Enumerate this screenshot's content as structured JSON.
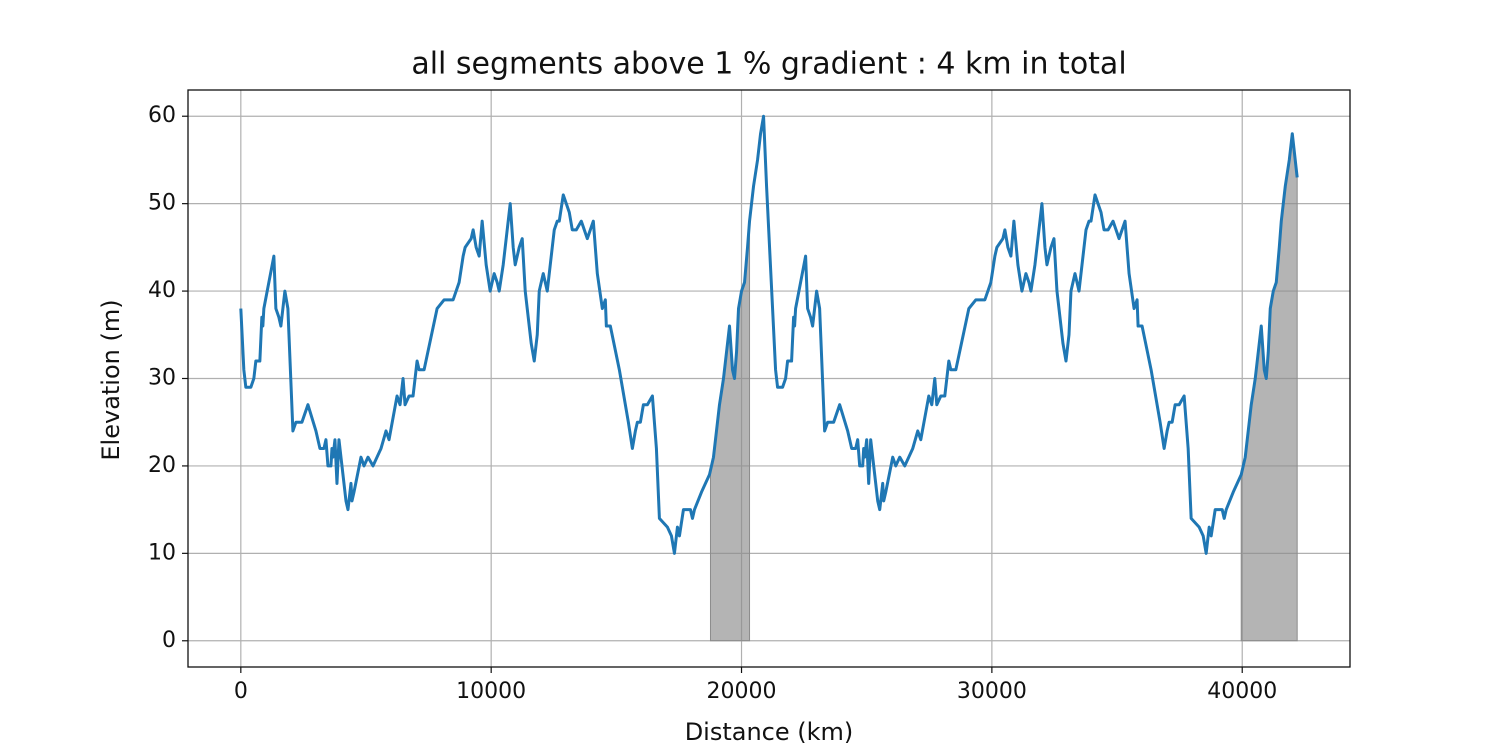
{
  "chart_data": {
    "type": "line",
    "title": "all segments above 1 % gradient : 4 km in total",
    "xlabel": "Distance (km)",
    "ylabel": "Elevation (m)",
    "color": "#1f77b4",
    "grid": true,
    "xlim": [
      -2110,
      44305
    ],
    "ylim": [
      -3,
      63
    ],
    "xticks": [
      0,
      10000,
      20000,
      30000,
      40000
    ],
    "yticks": [
      0,
      10,
      20,
      30,
      40,
      50,
      60
    ],
    "shaded_ranges": [
      [
        18760,
        20320
      ],
      [
        39960,
        42195
      ]
    ],
    "shade_color": "#8c8c8c",
    "x": [
      0,
      120,
      200,
      400,
      520,
      600,
      760,
      840,
      880,
      920,
      1320,
      1400,
      1520,
      1600,
      1760,
      1880,
      2080,
      2200,
      2440,
      2680,
      3000,
      3160,
      3320,
      3400,
      3480,
      3600,
      3640,
      3680,
      3760,
      3840,
      3920,
      4080,
      4200,
      4280,
      4400,
      4440,
      4520,
      4800,
      4920,
      5080,
      5280,
      5600,
      5800,
      5920,
      6240,
      6360,
      6480,
      6560,
      6720,
      6880,
      7040,
      7120,
      7320,
      7840,
      8120,
      8480,
      8720,
      8880,
      8960,
      9200,
      9280,
      9400,
      9520,
      9640,
      9800,
      9960,
      10120,
      10240,
      10320,
      10480,
      10760,
      10880,
      10960,
      11120,
      11240,
      11360,
      11600,
      11720,
      11840,
      11920,
      12080,
      12240,
      12520,
      12640,
      12720,
      12880,
      13000,
      13120,
      13240,
      13400,
      13600,
      13840,
      14080,
      14240,
      14440,
      14560,
      14600,
      14760,
      15120,
      15240,
      15480,
      15640,
      15760,
      15840,
      15960,
      16080,
      16240,
      16440,
      16600,
      16720,
      17040,
      17200,
      17320,
      17440,
      17520,
      17680,
      17960,
      18040,
      18120,
      18400,
      18720,
      18880,
      19120,
      19280,
      19520,
      19640,
      19720,
      19800,
      19880,
      20000,
      20120,
      20240,
      20320,
      20480,
      20640,
      20760,
      20880,
      21000,
      21120,
      21240,
      21360,
      21440,
      21640,
      21760,
      21840,
      22000,
      22080,
      22120,
      22160,
      22560,
      22640,
      22760,
      22840,
      23000,
      23120,
      23320,
      23440,
      23680,
      23920,
      24240,
      24400,
      24560,
      24640,
      24720,
      24840,
      24880,
      24920,
      25000,
      25080,
      25160,
      25320,
      25440,
      25520,
      25640,
      25680,
      25760,
      26040,
      26160,
      26320,
      26520,
      26840,
      27040,
      27160,
      27480,
      27600,
      27720,
      27800,
      27960,
      28120,
      28280,
      28360,
      28560,
      29080,
      29360,
      29720,
      29960,
      30120,
      30200,
      30440,
      30520,
      30640,
      30760,
      30880,
      31040,
      31200,
      31360,
      31480,
      31560,
      31720,
      32000,
      32120,
      32200,
      32360,
      32480,
      32600,
      32840,
      32960,
      33080,
      33160,
      33320,
      33480,
      33760,
      33880,
      33960,
      34120,
      34240,
      34360,
      34480,
      34640,
      34840,
      35080,
      35320,
      35480,
      35680,
      35800,
      35840,
      36000,
      36360,
      36480,
      36720,
      36880,
      37000,
      37080,
      37200,
      37320,
      37480,
      37680,
      37840,
      37960,
      38280,
      38440,
      38560,
      38680,
      38760,
      38920,
      39200,
      39280,
      39360,
      39640,
      39960,
      40120,
      40360,
      40520,
      40760,
      40880,
      40960,
      41040,
      41120,
      41240,
      41360,
      41480,
      41560,
      41720,
      41880,
      42000,
      42195
    ],
    "values": [
      38,
      31,
      29,
      29,
      30,
      32,
      32,
      37,
      36,
      38,
      44,
      38,
      37,
      36,
      40,
      38,
      24,
      25,
      25,
      27,
      24,
      22,
      22,
      23,
      20,
      20,
      22,
      21,
      23,
      18,
      23,
      19,
      16,
      15,
      18,
      16,
      17,
      21,
      20,
      21,
      20,
      22,
      24,
      23,
      28,
      27,
      30,
      27,
      28,
      28,
      32,
      31,
      31,
      38,
      39,
      39,
      41,
      44,
      45,
      46,
      47,
      45,
      44,
      48,
      43,
      40,
      42,
      41,
      40,
      43,
      50,
      45,
      43,
      45,
      46,
      40,
      34,
      32,
      35,
      40,
      42,
      40,
      47,
      48,
      48,
      51,
      50,
      49,
      47,
      47,
      48,
      46,
      48,
      42,
      38,
      39,
      36,
      36,
      31,
      29,
      25,
      22,
      24,
      25,
      25,
      27,
      27,
      28,
      22,
      14,
      13,
      12,
      10,
      13,
      12,
      15,
      15,
      14,
      15,
      17,
      19,
      21,
      27,
      30,
      36,
      31,
      30,
      33,
      38,
      40,
      41,
      45,
      48,
      52,
      55,
      58,
      60,
      52,
      45,
      38,
      31,
      29,
      29,
      30,
      32,
      32,
      37,
      36,
      38,
      44,
      38,
      37,
      36,
      40,
      38,
      24,
      25,
      25,
      27,
      24,
      22,
      22,
      23,
      20,
      20,
      22,
      21,
      23,
      18,
      23,
      19,
      16,
      15,
      18,
      16,
      17,
      21,
      20,
      21,
      20,
      22,
      24,
      23,
      28,
      27,
      30,
      27,
      28,
      28,
      32,
      31,
      31,
      38,
      39,
      39,
      41,
      44,
      45,
      46,
      47,
      45,
      44,
      48,
      43,
      40,
      42,
      41,
      40,
      43,
      50,
      45,
      43,
      45,
      46,
      40,
      34,
      32,
      35,
      40,
      42,
      40,
      47,
      48,
      48,
      51,
      50,
      49,
      47,
      47,
      48,
      46,
      48,
      42,
      38,
      39,
      36,
      36,
      31,
      29,
      25,
      22,
      24,
      25,
      25,
      27,
      27,
      28,
      22,
      14,
      13,
      12,
      10,
      13,
      12,
      15,
      15,
      14,
      15,
      17,
      19,
      21,
      27,
      30,
      36,
      31,
      30,
      33,
      38,
      40,
      41,
      45,
      48,
      52,
      55,
      58,
      53
    ]
  }
}
